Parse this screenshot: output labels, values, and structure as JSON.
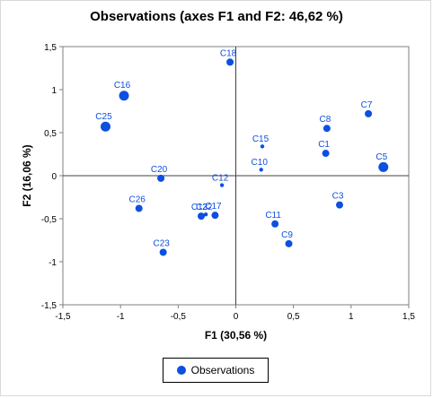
{
  "chart_data": {
    "type": "scatter",
    "title": "Observations (axes F1 and F2: 46,62 %)",
    "xlabel": "F1 (30,56 %)",
    "ylabel": "F2 (16,06 %)",
    "xlim": [
      -1.5,
      1.5
    ],
    "ylim": [
      -1.5,
      1.5
    ],
    "xticks": [
      "-1,5",
      "-1",
      "-0,5",
      "0",
      "0,5",
      "1",
      "1,5"
    ],
    "yticks": [
      "-1,5",
      "-1",
      "-0,5",
      "0",
      "0,5",
      "1",
      "1,5"
    ],
    "grid": false,
    "legend_position": "bottom",
    "color": "#0d4fe0",
    "series": [
      {
        "name": "Observations",
        "points": [
          {
            "label": "C18",
            "x": -0.05,
            "y": 1.32,
            "weight": 1
          },
          {
            "label": "C16",
            "x": -0.97,
            "y": 0.93,
            "weight": 2
          },
          {
            "label": "C25",
            "x": -1.13,
            "y": 0.57,
            "weight": 2
          },
          {
            "label": "C7",
            "x": 1.15,
            "y": 0.72,
            "weight": 1
          },
          {
            "label": "C8",
            "x": 0.79,
            "y": 0.55,
            "weight": 1
          },
          {
            "label": "C15",
            "x": 0.23,
            "y": 0.34,
            "weight": 0
          },
          {
            "label": "C1",
            "x": 0.78,
            "y": 0.26,
            "weight": 1
          },
          {
            "label": "C10",
            "x": 0.22,
            "y": 0.07,
            "weight": 0
          },
          {
            "label": "C5",
            "x": 1.28,
            "y": 0.1,
            "weight": 2
          },
          {
            "label": "C20",
            "x": -0.65,
            "y": -0.03,
            "weight": 1
          },
          {
            "label": "C12",
            "x": -0.12,
            "y": -0.11,
            "weight": 0
          },
          {
            "label": "C3",
            "x": 0.9,
            "y": -0.34,
            "weight": 1
          },
          {
            "label": "C26",
            "x": -0.84,
            "y": -0.38,
            "weight": 1
          },
          {
            "label": "C22",
            "x": -0.26,
            "y": -0.45,
            "weight": 0
          },
          {
            "label": "C13",
            "x": -0.3,
            "y": -0.47,
            "weight": 1
          },
          {
            "label": "C17",
            "x": -0.18,
            "y": -0.46,
            "weight": 1
          },
          {
            "label": "C11",
            "x": 0.34,
            "y": -0.56,
            "weight": 1
          },
          {
            "label": "C9",
            "x": 0.46,
            "y": -0.79,
            "weight": 1
          },
          {
            "label": "C23",
            "x": -0.63,
            "y": -0.89,
            "weight": 1
          }
        ]
      }
    ]
  },
  "legend": {
    "label": "Observations"
  }
}
